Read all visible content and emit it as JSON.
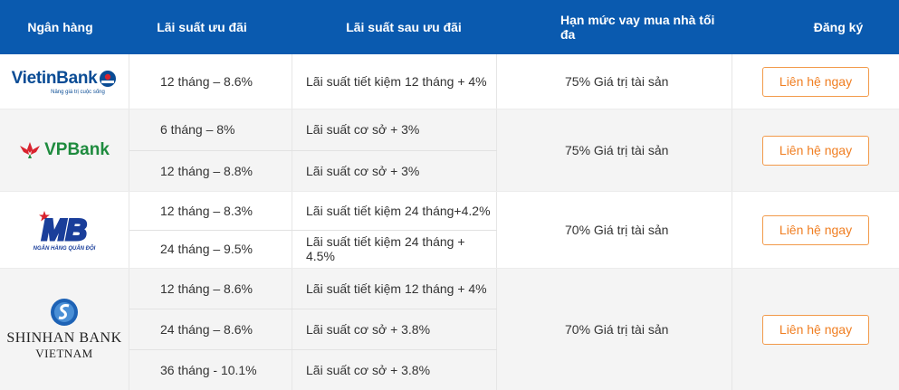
{
  "header": {
    "bank": "Ngân hàng",
    "promo_rate": "Lãi suất ưu đãi",
    "after_rate": "Lãi suất sau ưu đãi",
    "max_limit": "Hạn mức vay mua nhà tối đa",
    "register": "Đăng ký"
  },
  "colors": {
    "header_bg": "#0a5aaf",
    "button_border": "#f29a4a",
    "button_text": "#f07e21"
  },
  "banks": [
    {
      "logo_text": "VietinBank",
      "logo_tagline": "Nâng giá trị cuộc sống",
      "terms": [
        {
          "promo": "12 tháng – 8.6%",
          "after": "Lãi suất tiết kiệm 12 tháng + 4%"
        }
      ],
      "limit": "75% Giá trị tài sản",
      "button": "Liên hệ ngay"
    },
    {
      "logo_text": "VPBank",
      "terms": [
        {
          "promo": "6 tháng – 8%",
          "after": "Lãi suất cơ sở + 3%"
        },
        {
          "promo": "12 tháng – 8.8%",
          "after": "Lãi suất cơ sở + 3%"
        }
      ],
      "limit": "75% Giá trị tài sản",
      "button": "Liên hệ ngay"
    },
    {
      "logo_text": "MB",
      "logo_tagline": "NGÂN HÀNG QUÂN ĐỘI",
      "terms": [
        {
          "promo": "12 tháng – 8.3%",
          "after": "Lãi suất tiết kiệm 24 tháng+4.2%"
        },
        {
          "promo": "24 tháng – 9.5%",
          "after": "Lãi suất tiết kiệm 24 tháng + 4.5%"
        }
      ],
      "limit": "70% Giá trị tài sản",
      "button": "Liên hệ ngay"
    },
    {
      "logo_text": "SHINHAN BANK",
      "logo_tagline": "VIETNAM",
      "terms": [
        {
          "promo": "12 tháng – 8.6%",
          "after": "Lãi suất tiết kiệm 12 tháng + 4%"
        },
        {
          "promo": "24 tháng – 8.6%",
          "after": "Lãi suất cơ sở + 3.8%"
        },
        {
          "promo": "36 tháng - 10.1%",
          "after": "Lãi suất cơ sở + 3.8%"
        }
      ],
      "limit": "70% Giá trị tài sản",
      "button": "Liên hệ ngay"
    }
  ]
}
